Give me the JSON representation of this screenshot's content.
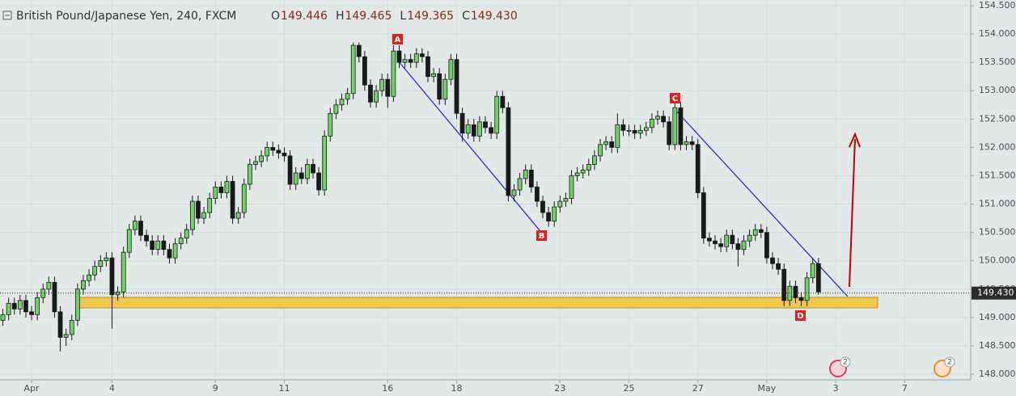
{
  "chart_data": {
    "type": "candlestick",
    "title": "British Pound/Japanese Yen, 240, FXCM",
    "ohlc_header": [
      {
        "label": "O",
        "value": "149.446"
      },
      {
        "label": "H",
        "value": "149.465"
      },
      {
        "label": "L",
        "value": "149.365"
      },
      {
        "label": "C",
        "value": "149.430"
      }
    ],
    "last_price": {
      "value": 149.43,
      "label": "149.430"
    },
    "up_color": "#6fd36a",
    "down_color": "#1a1a1a",
    "xlim": [
      -0.5,
      168.5
    ],
    "ylim": [
      147.9,
      154.6
    ],
    "xticks": [
      {
        "value": 5,
        "label": "Apr"
      },
      {
        "value": 19,
        "label": "4"
      },
      {
        "value": 37,
        "label": "9"
      },
      {
        "value": 49,
        "label": "11"
      },
      {
        "value": 67,
        "label": "16"
      },
      {
        "value": 79,
        "label": "18"
      },
      {
        "value": 97,
        "label": "23"
      },
      {
        "value": 109,
        "label": "25"
      },
      {
        "value": 121,
        "label": "27"
      },
      {
        "value": 133,
        "label": "May"
      },
      {
        "value": 145,
        "label": "3"
      },
      {
        "value": 157,
        "label": "7"
      }
    ],
    "yticks": [
      {
        "value": 154.5,
        "label": "154.500"
      },
      {
        "value": 154,
        "label": "154.000"
      },
      {
        "value": 153.5,
        "label": "153.500"
      },
      {
        "value": 153,
        "label": "153.000"
      },
      {
        "value": 152.5,
        "label": "152.500"
      },
      {
        "value": 152,
        "label": "152.000"
      },
      {
        "value": 151.5,
        "label": "151.500"
      },
      {
        "value": 151,
        "label": "151.000"
      },
      {
        "value": 150.5,
        "label": "150.500"
      },
      {
        "value": 150,
        "label": "150.000"
      },
      {
        "value": 149.5,
        "label": "149.500"
      },
      {
        "value": 149,
        "label": "149.000"
      },
      {
        "value": 148.5,
        "label": "148.500"
      },
      {
        "value": 148,
        "label": "148.000"
      }
    ],
    "annotations": [
      "A",
      "B",
      "C",
      "D"
    ],
    "event_badges": [
      "2",
      "2"
    ],
    "ohlc": [
      [
        148.95,
        149.15,
        148.85,
        149.05
      ],
      [
        149.05,
        149.35,
        148.95,
        149.25
      ],
      [
        149.25,
        149.35,
        149.05,
        149.15
      ],
      [
        149.15,
        149.4,
        149.05,
        149.3
      ],
      [
        149.3,
        149.4,
        149.0,
        149.1
      ],
      [
        149.1,
        149.2,
        148.95,
        149.05
      ],
      [
        149.05,
        149.45,
        148.95,
        149.35
      ],
      [
        149.35,
        149.6,
        149.25,
        149.5
      ],
      [
        149.5,
        149.72,
        149.4,
        149.62
      ],
      [
        149.62,
        149.72,
        149.0,
        149.1
      ],
      [
        149.1,
        149.2,
        148.4,
        148.65
      ],
      [
        148.65,
        148.8,
        148.5,
        148.7
      ],
      [
        148.7,
        149.05,
        148.6,
        148.95
      ],
      [
        148.95,
        149.6,
        148.85,
        149.5
      ],
      [
        149.5,
        149.75,
        149.4,
        149.65
      ],
      [
        149.65,
        149.85,
        149.55,
        149.75
      ],
      [
        149.75,
        150.0,
        149.65,
        149.9
      ],
      [
        149.9,
        150.1,
        149.8,
        150.0
      ],
      [
        150.0,
        150.15,
        149.9,
        150.05
      ],
      [
        150.05,
        150.15,
        148.8,
        149.4
      ],
      [
        149.4,
        149.55,
        149.3,
        149.45
      ],
      [
        149.45,
        150.25,
        149.35,
        150.15
      ],
      [
        150.15,
        150.65,
        150.05,
        150.55
      ],
      [
        150.55,
        150.8,
        150.45,
        150.7
      ],
      [
        150.7,
        150.8,
        150.35,
        150.45
      ],
      [
        150.45,
        150.55,
        150.25,
        150.35
      ],
      [
        150.35,
        150.45,
        150.1,
        150.2
      ],
      [
        150.2,
        150.45,
        150.1,
        150.35
      ],
      [
        150.35,
        150.45,
        150.1,
        150.2
      ],
      [
        150.2,
        150.3,
        149.95,
        150.05
      ],
      [
        150.05,
        150.4,
        149.95,
        150.3
      ],
      [
        150.3,
        150.5,
        150.2,
        150.4
      ],
      [
        150.4,
        150.65,
        150.3,
        150.55
      ],
      [
        150.55,
        151.15,
        150.45,
        151.05
      ],
      [
        151.05,
        151.15,
        150.65,
        150.75
      ],
      [
        150.75,
        150.95,
        150.65,
        150.85
      ],
      [
        150.85,
        151.2,
        150.75,
        151.1
      ],
      [
        151.1,
        151.4,
        151.0,
        151.3
      ],
      [
        151.3,
        151.4,
        151.1,
        151.2
      ],
      [
        151.2,
        151.5,
        151.1,
        151.4
      ],
      [
        151.4,
        151.5,
        150.65,
        150.75
      ],
      [
        150.75,
        150.95,
        150.65,
        150.85
      ],
      [
        150.85,
        151.45,
        150.75,
        151.35
      ],
      [
        151.35,
        151.8,
        151.25,
        151.7
      ],
      [
        151.7,
        151.85,
        151.6,
        151.75
      ],
      [
        151.75,
        151.95,
        151.65,
        151.85
      ],
      [
        151.85,
        152.1,
        151.75,
        152.0
      ],
      [
        152.0,
        152.1,
        151.85,
        151.95
      ],
      [
        151.95,
        152.05,
        151.8,
        151.9
      ],
      [
        151.9,
        152.0,
        151.75,
        151.85
      ],
      [
        151.85,
        151.95,
        151.25,
        151.35
      ],
      [
        151.35,
        151.65,
        151.25,
        151.55
      ],
      [
        151.55,
        151.65,
        151.35,
        151.45
      ],
      [
        151.45,
        151.8,
        151.35,
        151.7
      ],
      [
        151.7,
        151.8,
        151.45,
        151.55
      ],
      [
        151.55,
        151.65,
        151.15,
        151.25
      ],
      [
        151.25,
        152.3,
        151.15,
        152.2
      ],
      [
        152.2,
        152.7,
        152.1,
        152.6
      ],
      [
        152.6,
        152.85,
        152.5,
        152.75
      ],
      [
        152.75,
        152.95,
        152.65,
        152.85
      ],
      [
        152.85,
        153.05,
        152.75,
        152.95
      ],
      [
        152.95,
        153.85,
        152.85,
        153.8
      ],
      [
        153.8,
        153.85,
        153.5,
        153.6
      ],
      [
        153.6,
        153.7,
        153.0,
        153.1
      ],
      [
        153.1,
        153.2,
        152.7,
        152.8
      ],
      [
        152.8,
        153.1,
        152.7,
        153.0
      ],
      [
        153.0,
        153.3,
        152.9,
        153.2
      ],
      [
        153.2,
        153.3,
        152.7,
        152.9
      ],
      [
        152.9,
        153.8,
        152.8,
        153.7
      ],
      [
        153.7,
        153.8,
        153.4,
        153.5
      ],
      [
        153.5,
        153.65,
        153.4,
        153.55
      ],
      [
        153.55,
        153.65,
        153.4,
        153.5
      ],
      [
        153.5,
        153.75,
        153.4,
        153.65
      ],
      [
        153.65,
        153.75,
        153.5,
        153.6
      ],
      [
        153.6,
        153.7,
        153.15,
        153.25
      ],
      [
        153.25,
        153.4,
        153.15,
        153.3
      ],
      [
        153.3,
        153.4,
        152.75,
        152.85
      ],
      [
        152.85,
        153.3,
        152.75,
        153.2
      ],
      [
        153.2,
        153.65,
        153.1,
        153.55
      ],
      [
        153.55,
        153.65,
        152.5,
        152.6
      ],
      [
        152.6,
        152.7,
        152.1,
        152.25
      ],
      [
        152.25,
        152.5,
        152.15,
        152.4
      ],
      [
        152.4,
        152.5,
        152.1,
        152.2
      ],
      [
        152.2,
        152.55,
        152.1,
        152.45
      ],
      [
        152.45,
        152.55,
        152.25,
        152.35
      ],
      [
        152.35,
        152.45,
        152.15,
        152.25
      ],
      [
        152.25,
        153.0,
        152.15,
        152.9
      ],
      [
        152.9,
        153.0,
        152.6,
        152.7
      ],
      [
        152.7,
        152.8,
        151.05,
        151.15
      ],
      [
        151.15,
        151.35,
        151.05,
        151.25
      ],
      [
        151.25,
        151.55,
        151.15,
        151.45
      ],
      [
        151.45,
        151.7,
        151.35,
        151.6
      ],
      [
        151.6,
        151.7,
        151.2,
        151.3
      ],
      [
        151.3,
        151.4,
        150.95,
        151.05
      ],
      [
        151.05,
        151.15,
        150.75,
        150.85
      ],
      [
        150.85,
        150.95,
        150.6,
        150.7
      ],
      [
        150.7,
        151.05,
        150.6,
        150.95
      ],
      [
        150.95,
        151.15,
        150.85,
        151.05
      ],
      [
        151.05,
        151.2,
        150.95,
        151.1
      ],
      [
        151.1,
        151.6,
        151.0,
        151.5
      ],
      [
        151.5,
        151.65,
        151.4,
        151.55
      ],
      [
        151.55,
        151.7,
        151.45,
        151.6
      ],
      [
        151.6,
        151.8,
        151.5,
        151.7
      ],
      [
        151.7,
        151.95,
        151.6,
        151.85
      ],
      [
        151.85,
        152.15,
        151.75,
        152.05
      ],
      [
        152.05,
        152.2,
        151.95,
        152.1
      ],
      [
        152.1,
        152.2,
        151.9,
        152.0
      ],
      [
        152.0,
        152.6,
        151.9,
        152.4
      ],
      [
        152.4,
        152.5,
        152.2,
        152.3
      ],
      [
        152.3,
        152.4,
        152.2,
        152.3
      ],
      [
        152.3,
        152.4,
        152.15,
        152.25
      ],
      [
        152.25,
        152.4,
        152.15,
        152.3
      ],
      [
        152.3,
        152.45,
        152.2,
        152.35
      ],
      [
        152.35,
        152.6,
        152.25,
        152.5
      ],
      [
        152.5,
        152.65,
        152.4,
        152.55
      ],
      [
        152.55,
        152.65,
        152.35,
        152.45
      ],
      [
        152.45,
        152.55,
        151.95,
        152.05
      ],
      [
        152.05,
        152.8,
        151.95,
        152.7
      ],
      [
        152.7,
        152.8,
        151.95,
        152.05
      ],
      [
        152.05,
        152.2,
        151.95,
        152.1
      ],
      [
        152.1,
        152.2,
        151.95,
        152.05
      ],
      [
        152.05,
        152.15,
        151.1,
        151.2
      ],
      [
        151.2,
        151.3,
        150.3,
        150.4
      ],
      [
        150.4,
        150.5,
        150.25,
        150.35
      ],
      [
        150.35,
        150.45,
        150.2,
        150.3
      ],
      [
        150.3,
        150.4,
        150.15,
        150.25
      ],
      [
        150.25,
        150.55,
        150.15,
        150.45
      ],
      [
        150.45,
        150.55,
        150.2,
        150.3
      ],
      [
        150.3,
        150.4,
        149.9,
        150.2
      ],
      [
        150.2,
        150.45,
        150.1,
        150.35
      ],
      [
        150.35,
        150.55,
        150.25,
        150.45
      ],
      [
        150.45,
        150.65,
        150.35,
        150.55
      ],
      [
        150.55,
        150.65,
        150.4,
        150.5
      ],
      [
        150.5,
        150.6,
        149.95,
        150.05
      ],
      [
        150.05,
        150.15,
        149.85,
        149.95
      ],
      [
        149.95,
        150.05,
        149.75,
        149.85
      ],
      [
        149.85,
        149.95,
        149.2,
        149.3
      ],
      [
        149.3,
        149.65,
        149.2,
        149.55
      ],
      [
        149.55,
        149.65,
        149.25,
        149.35
      ],
      [
        149.35,
        149.45,
        149.2,
        149.3
      ],
      [
        149.3,
        149.8,
        149.2,
        149.7
      ],
      [
        149.7,
        150.05,
        149.6,
        149.95
      ],
      [
        149.95,
        150.05,
        149.4,
        149.45
      ]
    ]
  }
}
